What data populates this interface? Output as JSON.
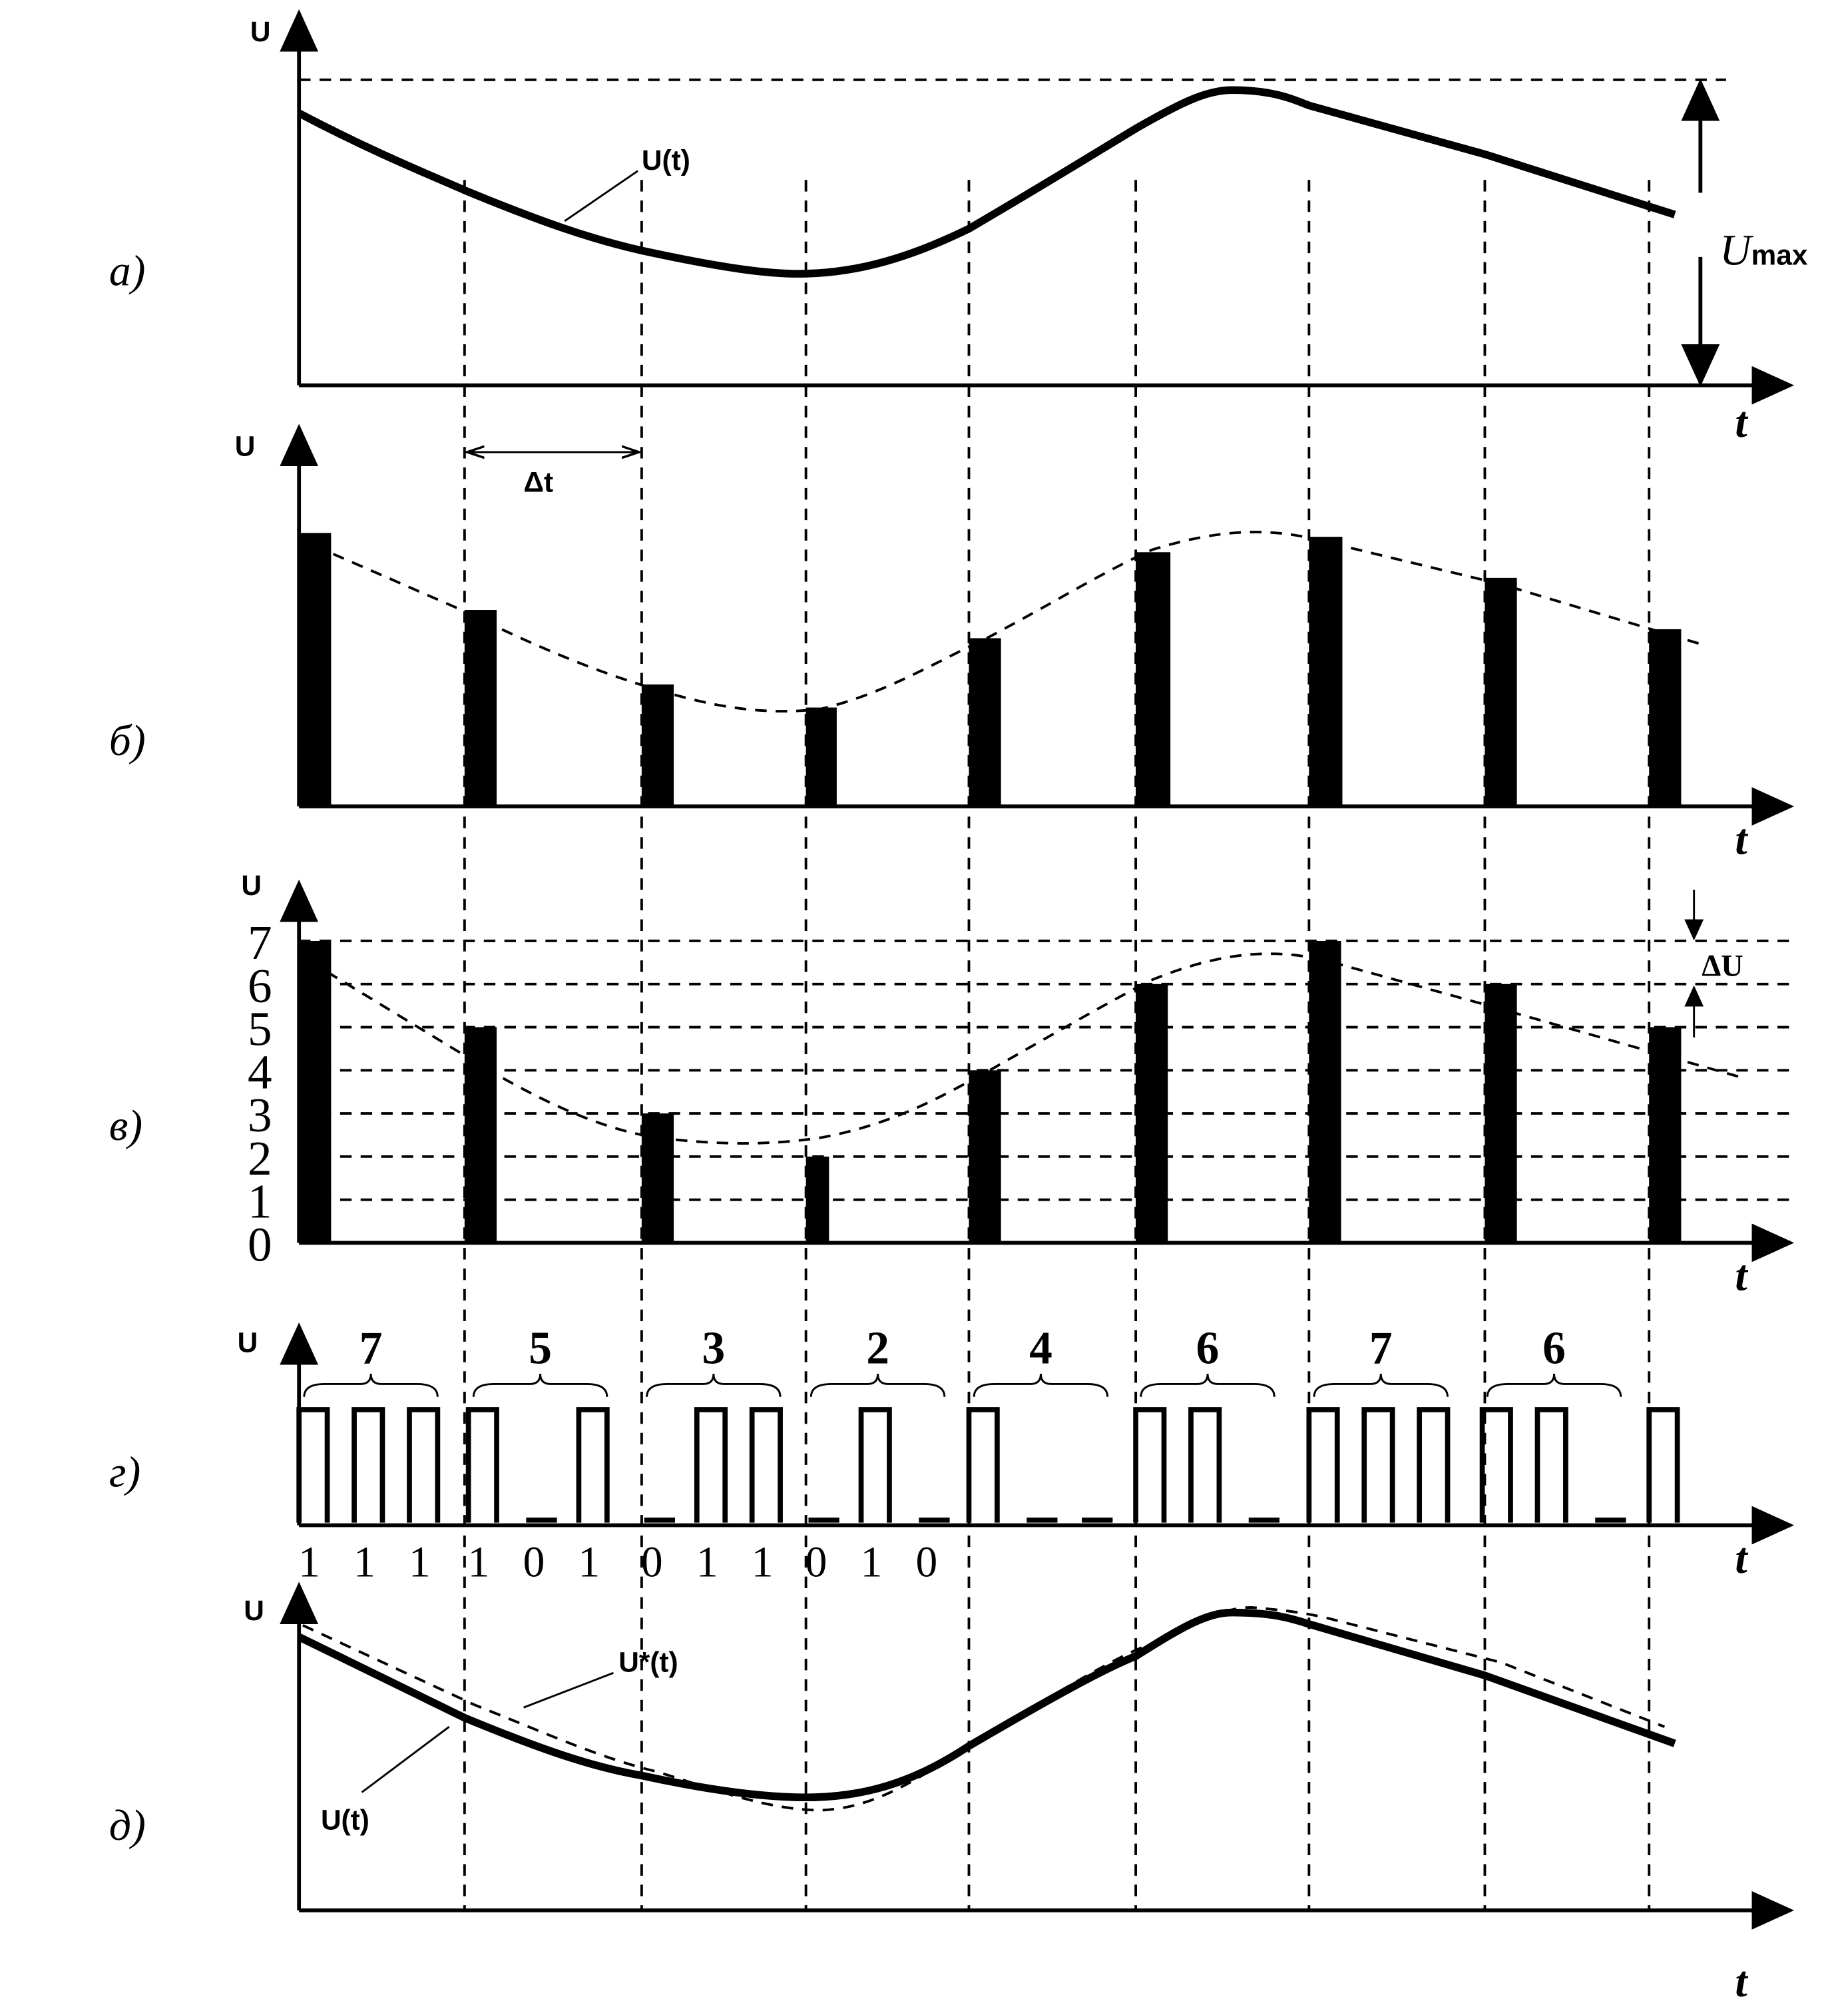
{
  "panels": [
    {
      "letter": "а)",
      "axis_y": "U",
      "axis_x": "t",
      "curve_label": "U(t)",
      "max_label": "U",
      "max_sub": "max"
    },
    {
      "letter": "б)",
      "axis_y": "U",
      "axis_x": "t",
      "step_label": "Δt"
    },
    {
      "letter": "в)",
      "axis_y": "U",
      "axis_x": "t",
      "step_label": "ΔU",
      "levels": [
        "0",
        "1",
        "2",
        "3",
        "4",
        "5",
        "6",
        "7"
      ],
      "samples": [
        7,
        5,
        3,
        2,
        4,
        6,
        7,
        6,
        5
      ]
    },
    {
      "letter": "г)",
      "axis_y": "U",
      "axis_x": "t",
      "codes": [
        "7",
        "5",
        "3",
        "2",
        "4",
        "6",
        "7",
        "6"
      ],
      "bits": [
        "1",
        "1",
        "1",
        "1",
        "0",
        "1",
        "0",
        "1",
        "1",
        "0",
        "1",
        "0"
      ]
    },
    {
      "letter": "д)",
      "axis_y": "U",
      "axis_x": "t",
      "curve_label": "U(t)",
      "restored_label": "U*(t)"
    }
  ]
}
